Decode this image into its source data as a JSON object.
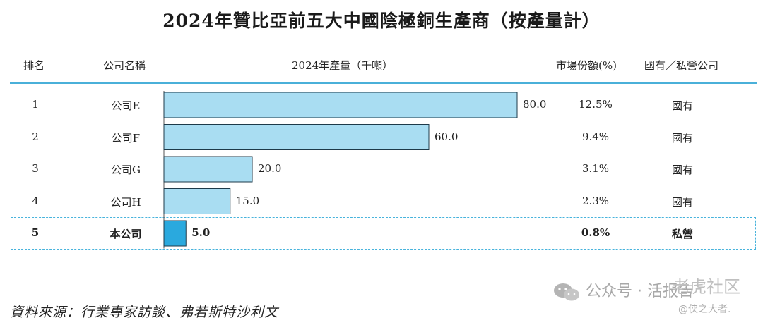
{
  "title": "2024年贊比亞前五大中國陰極銅生產商（按產量計）",
  "headers": {
    "rank": "排名",
    "name": "公司名稱",
    "output": "2024年產量（千噸）",
    "share": "市場份額(%)",
    "ownership": "國有／私營公司"
  },
  "rows": [
    {
      "rank": "1",
      "name": "公司E",
      "value_label": "80.0",
      "share": "12.5%",
      "ownership": "國有",
      "highlight": false
    },
    {
      "rank": "2",
      "name": "公司F",
      "value_label": "60.0",
      "share": "9.4%",
      "ownership": "國有",
      "highlight": false
    },
    {
      "rank": "3",
      "name": "公司G",
      "value_label": "20.0",
      "share": "3.1%",
      "ownership": "國有",
      "highlight": false
    },
    {
      "rank": "4",
      "name": "公司H",
      "value_label": "15.0",
      "share": "2.3%",
      "ownership": "國有",
      "highlight": false
    },
    {
      "rank": "5",
      "name": "本公司",
      "value_label": "5.0",
      "share": "0.8%",
      "ownership": "私營",
      "highlight": true
    }
  ],
  "chart_data": {
    "type": "bar",
    "orientation": "horizontal",
    "categories": [
      "公司E",
      "公司F",
      "公司G",
      "公司H",
      "本公司"
    ],
    "values": [
      80.0,
      60.0,
      20.0,
      15.0,
      5.0
    ],
    "title": "2024年贊比亞前五大中國陰極銅生產商（按產量計）",
    "xlabel": "2024年產量（千噸）",
    "ylabel": "",
    "xlim": [
      0,
      80
    ],
    "grid": false,
    "colors": {
      "normal": "#a9ddf2",
      "highlight": "#2aa9de",
      "outline": "#1e3a4a"
    }
  },
  "source": "資料來源：行業專家訪談、弗若斯特沙利文",
  "watermark": {
    "text": "公众号 · 活报告",
    "overlay": "老虎社区",
    "handle": "@侠之大者."
  }
}
